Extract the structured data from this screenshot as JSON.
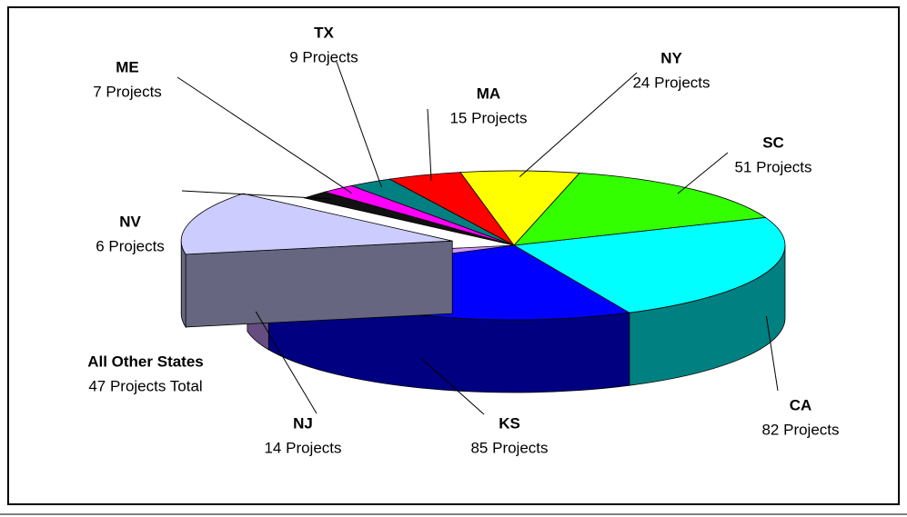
{
  "chart_data": {
    "type": "pie3d",
    "categories": [
      "CA",
      "KS",
      "NJ",
      "All Other States",
      "NV",
      "ME",
      "TX",
      "MA",
      "NY",
      "SC"
    ],
    "values": [
      82,
      85,
      14,
      47,
      6,
      7,
      9,
      15,
      24,
      51
    ],
    "value_labels": [
      "82 Projects",
      "85 Projects",
      "14 Projects",
      "47 Projects Total",
      "6 Projects",
      "7 Projects",
      "9 Projects",
      "15 Projects",
      "24 Projects",
      "51 Projects"
    ],
    "colors": [
      "#00ffff",
      "#0000ff",
      "#cc99ff",
      "#ccccff",
      "#111111",
      "#ff00ff",
      "#008080",
      "#ff0000",
      "#ffff00",
      "#33ff00"
    ],
    "exploded": "All Other States"
  }
}
